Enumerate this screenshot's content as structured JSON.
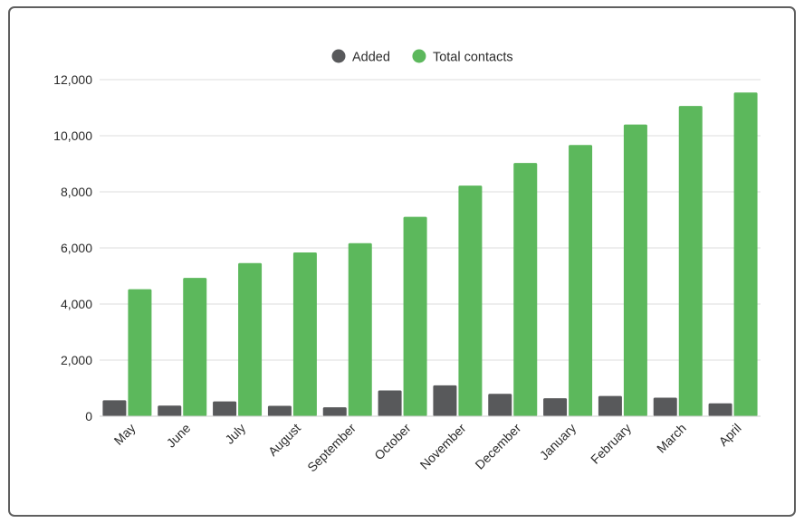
{
  "chart_data": {
    "type": "bar",
    "categories": [
      "May",
      "June",
      "July",
      "August",
      "September",
      "October",
      "November",
      "December",
      "January",
      "February",
      "March",
      "April"
    ],
    "series": [
      {
        "name": "Added",
        "color": "#58595b",
        "values": [
          570,
          380,
          530,
          370,
          320,
          920,
          1100,
          800,
          640,
          720,
          660,
          460
        ]
      },
      {
        "name": "Total contacts",
        "color": "#5cb85c",
        "values": [
          4530,
          4930,
          5460,
          5840,
          6170,
          7110,
          8220,
          9030,
          9670,
          10400,
          11060,
          11540
        ]
      }
    ],
    "y_ticks": [
      "0",
      "2,000",
      "4,000",
      "6,000",
      "8,000",
      "10,000",
      "12,000"
    ],
    "ylim": [
      0,
      12000
    ],
    "grid": true,
    "legend_position": "top-center",
    "title": "",
    "xlabel": "",
    "ylabel": ""
  }
}
